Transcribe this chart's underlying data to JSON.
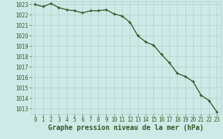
{
  "x": [
    0,
    1,
    2,
    3,
    4,
    5,
    6,
    7,
    8,
    9,
    10,
    11,
    12,
    13,
    14,
    15,
    16,
    17,
    18,
    19,
    20,
    21,
    22,
    23
  ],
  "y": [
    1023.0,
    1022.8,
    1023.1,
    1022.7,
    1022.5,
    1022.4,
    1022.2,
    1022.4,
    1022.4,
    1022.5,
    1022.1,
    1021.9,
    1021.3,
    1020.0,
    1019.4,
    1019.1,
    1018.2,
    1017.4,
    1016.4,
    1016.1,
    1015.6,
    1014.3,
    1013.8,
    1012.7
  ],
  "line_color": "#2d5a27",
  "marker": "P",
  "marker_size": 2.5,
  "background_color": "#ceeae7",
  "grid_color": "#b0ccc9",
  "tick_color": "#2d5a27",
  "label_color": "#2d5a27",
  "xlabel": "Graphe pression niveau de la mer (hPa)",
  "xlim_min": -0.5,
  "xlim_max": 23.5,
  "ylim_min": 1012.5,
  "ylim_max": 1023.3,
  "yticks": [
    1013,
    1014,
    1015,
    1016,
    1017,
    1018,
    1019,
    1020,
    1021,
    1022,
    1023
  ],
  "xticks": [
    0,
    1,
    2,
    3,
    4,
    5,
    6,
    7,
    8,
    9,
    10,
    11,
    12,
    13,
    14,
    15,
    16,
    17,
    18,
    19,
    20,
    21,
    22,
    23
  ],
  "tick_fontsize": 5.5,
  "xlabel_fontsize": 7.0,
  "linewidth": 1.0
}
